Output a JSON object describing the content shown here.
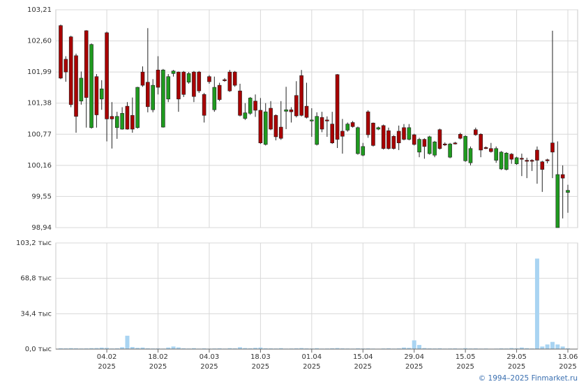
{
  "chart_data": {
    "type": "candlestick",
    "categories": [
      null,
      null,
      null,
      null,
      null,
      null,
      null,
      null,
      null,
      "04.02\n2025",
      null,
      null,
      null,
      null,
      null,
      null,
      null,
      null,
      null,
      "18.02\n2025",
      null,
      null,
      null,
      null,
      null,
      null,
      null,
      null,
      null,
      "04.03\n2025",
      null,
      null,
      null,
      null,
      null,
      null,
      null,
      null,
      null,
      "18.03\n2025",
      null,
      null,
      null,
      null,
      null,
      null,
      null,
      null,
      null,
      "01.04\n2025",
      null,
      null,
      null,
      null,
      null,
      null,
      null,
      null,
      null,
      "15.04\n2025",
      null,
      null,
      null,
      null,
      null,
      null,
      null,
      null,
      null,
      "29.04\n2025",
      null,
      null,
      null,
      null,
      null,
      null,
      null,
      null,
      null,
      "15.05\n2025",
      null,
      null,
      null,
      null,
      null,
      null,
      null,
      null,
      null,
      "29.05\n2025",
      null,
      null,
      null,
      null,
      null,
      null,
      null,
      null,
      null,
      "13.06\n2025"
    ],
    "open": [
      102.9,
      102.24,
      102.68,
      102.31,
      101.42,
      102.8,
      100.9,
      101.9,
      101.46,
      102.76,
      101.12,
      100.9,
      100.87,
      101.32,
      101.14,
      100.9,
      101.99,
      101.79,
      101.25,
      102.03,
      100.91,
      101.46,
      101.96,
      101.99,
      101.99,
      101.79,
      101.99,
      101.99,
      101.55,
      101.9,
      101.25,
      101.73,
      101.84,
      101.99,
      101.99,
      101.62,
      101.08,
      101.18,
      101.42,
      101.24,
      100.57,
      101.28,
      101.14,
      100.91,
      101.22,
      101.25,
      101.53,
      101.92,
      101.32,
      101.04,
      100.57,
      101.1,
      101.05,
      100.97,
      101.94,
      100.83,
      100.85,
      101.0,
      100.39,
      100.36,
      101.21,
      100.99,
      100.87,
      100.94,
      100.84,
      100.73,
      100.83,
      100.9,
      100.67,
      100.76,
      100.42,
      100.67,
      100.39,
      100.36,
      100.86,
      100.58,
      100.32,
      100.6,
      100.77,
      100.25,
      100.21,
      100.86,
      100.77,
      100.51,
      100.49,
      100.26,
      100.09,
      100.08,
      100.38,
      100.19,
      100.3,
      100.26,
      100.26,
      100.46,
      100.23,
      100.27,
      100.6,
      98.94,
      99.98,
      99.63
    ],
    "high": [
      102.92,
      102.3,
      102.7,
      102.35,
      102.0,
      102.81,
      102.55,
      101.95,
      101.83,
      102.78,
      101.4,
      101.21,
      101.3,
      101.4,
      101.49,
      101.7,
      102.1,
      102.85,
      101.85,
      102.3,
      102.05,
      101.95,
      102.03,
      102.0,
      102.01,
      101.99,
      102.01,
      102.01,
      101.58,
      101.93,
      101.9,
      101.78,
      101.87,
      102.03,
      102.01,
      101.76,
      101.38,
      101.5,
      101.55,
      101.48,
      101.38,
      101.42,
      101.16,
      101.42,
      101.7,
      101.3,
      101.81,
      102.03,
      101.78,
      101.28,
      101.2,
      101.21,
      101.12,
      101.21,
      101.95,
      101.07,
      101.0,
      101.03,
      100.92,
      100.6,
      101.24,
      101.0,
      100.92,
      100.96,
      100.9,
      100.75,
      100.94,
      100.97,
      100.97,
      100.78,
      100.7,
      100.69,
      100.74,
      100.64,
      100.88,
      100.61,
      100.6,
      100.62,
      100.8,
      100.75,
      100.53,
      100.9,
      100.79,
      100.53,
      100.6,
      100.53,
      100.44,
      100.42,
      100.4,
      100.33,
      100.39,
      100.31,
      100.28,
      100.53,
      100.25,
      100.29,
      102.8,
      100.63,
      100.16,
      99.78
    ],
    "low": [
      101.85,
      101.8,
      101.3,
      100.8,
      101.35,
      100.9,
      100.88,
      100.9,
      101.25,
      100.63,
      100.49,
      100.68,
      100.86,
      100.86,
      100.8,
      100.88,
      101.7,
      101.2,
      101.2,
      101.55,
      100.9,
      101.4,
      101.9,
      101.21,
      101.5,
      101.76,
      101.4,
      101.58,
      101.0,
      101.76,
      101.21,
      101.42,
      101.8,
      101.6,
      101.7,
      101.12,
      101.05,
      101.15,
      101.11,
      100.58,
      100.55,
      100.85,
      100.65,
      100.66,
      100.87,
      101.0,
      101.1,
      101.12,
      101.08,
      100.72,
      100.55,
      100.81,
      100.72,
      100.58,
      100.5,
      100.39,
      100.82,
      100.9,
      100.37,
      100.34,
      100.7,
      100.53,
      100.85,
      100.47,
      100.47,
      100.47,
      100.46,
      100.65,
      100.65,
      100.55,
      100.32,
      100.29,
      100.37,
      100.32,
      100.47,
      100.54,
      100.3,
      100.57,
      100.67,
      100.23,
      100.16,
      100.74,
      100.32,
      100.48,
      100.41,
      100.21,
      100.07,
      100.06,
      100.19,
      100.17,
      99.95,
      99.91,
      100.05,
      99.8,
      99.64,
      100.2,
      99.91,
      98.94,
      99.12,
      99.23
    ],
    "close": [
      101.87,
      101.99,
      101.35,
      101.12,
      101.87,
      101.49,
      102.53,
      101.15,
      101.66,
      101.07,
      101.07,
      101.12,
      101.18,
      100.87,
      100.87,
      101.69,
      101.73,
      101.31,
      101.73,
      101.69,
      102.03,
      101.9,
      102.01,
      101.46,
      101.55,
      101.96,
      101.51,
      101.62,
      101.14,
      101.8,
      101.69,
      101.45,
      101.82,
      101.62,
      101.73,
      101.14,
      101.19,
      101.48,
      101.24,
      100.6,
      101.21,
      100.87,
      100.72,
      100.69,
      101.25,
      101.21,
      101.13,
      101.14,
      101.1,
      101.05,
      101.12,
      100.87,
      101.03,
      100.6,
      100.67,
      100.73,
      100.97,
      100.92,
      100.9,
      100.53,
      100.76,
      100.55,
      100.9,
      100.49,
      100.49,
      100.49,
      100.6,
      100.67,
      100.9,
      100.57,
      100.67,
      100.53,
      100.72,
      100.62,
      100.49,
      100.57,
      100.58,
      100.59,
      100.69,
      100.73,
      100.49,
      100.76,
      100.46,
      100.5,
      100.43,
      100.49,
      100.42,
      100.4,
      100.28,
      100.31,
      100.29,
      100.25,
      100.25,
      100.26,
      100.08,
      100.26,
      100.42,
      99.98,
      99.91,
      99.67
    ],
    "volume": [
      0.8,
      0.7,
      0.9,
      0.8,
      0.6,
      0.7,
      0.9,
      1.0,
      1.4,
      1.2,
      0.6,
      0.8,
      1.8,
      13.0,
      2.0,
      1.2,
      1.5,
      0.8,
      0.6,
      0.7,
      0.5,
      1.5,
      2.5,
      1.6,
      0.8,
      0.6,
      0.9,
      0.5,
      0.7,
      0.5,
      0.6,
      0.8,
      0.5,
      0.9,
      0.7,
      1.8,
      1.0,
      0.8,
      1.2,
      1.5,
      0.8,
      0.7,
      0.6,
      0.9,
      0.5,
      0.6,
      0.8,
      1.0,
      0.7,
      0.6,
      0.9,
      0.5,
      0.6,
      0.8,
      1.0,
      0.7,
      0.6,
      0.5,
      0.8,
      0.6,
      0.7,
      0.5,
      0.4,
      0.6,
      0.8,
      0.5,
      0.7,
      1.5,
      1.2,
      8.5,
      4.0,
      1.0,
      0.7,
      0.6,
      0.8,
      0.5,
      0.6,
      0.7,
      0.5,
      0.9,
      0.6,
      0.7,
      0.5,
      0.6,
      0.4,
      0.5,
      0.7,
      0.6,
      1.0,
      0.8,
      1.5,
      0.9,
      0.6,
      88.0,
      2.5,
      4.5,
      7.0,
      4.5,
      2.5,
      0.8
    ],
    "ylim": [
      98.94,
      103.21
    ],
    "yticks": [
      {
        "value": 98.94,
        "label": "98,94"
      },
      {
        "value": 99.55,
        "label": "99,55"
      },
      {
        "value": 100.16,
        "label": "100,16"
      },
      {
        "value": 100.77,
        "label": "100,77"
      },
      {
        "value": 101.38,
        "label": "101,38"
      },
      {
        "value": 101.99,
        "label": "101,99"
      },
      {
        "value": 102.6,
        "label": "102,60"
      },
      {
        "value": 103.21,
        "label": "103,21"
      }
    ],
    "volume_ylim": [
      0,
      103.2
    ],
    "volume_yticks": [
      {
        "value": 0,
        "label": "0,0 тыс"
      },
      {
        "value": 34.4,
        "label": "34,4 тыс"
      },
      {
        "value": 68.8,
        "label": "68,8 тыс"
      },
      {
        "value": 103.2,
        "label": "103,2 тыс"
      }
    ],
    "grid": true,
    "up_color": "#1f9a1f",
    "down_color": "#a80000",
    "volume_color": "#a9d4f2",
    "source": "© 1994–2025 Finmarket.ru"
  }
}
